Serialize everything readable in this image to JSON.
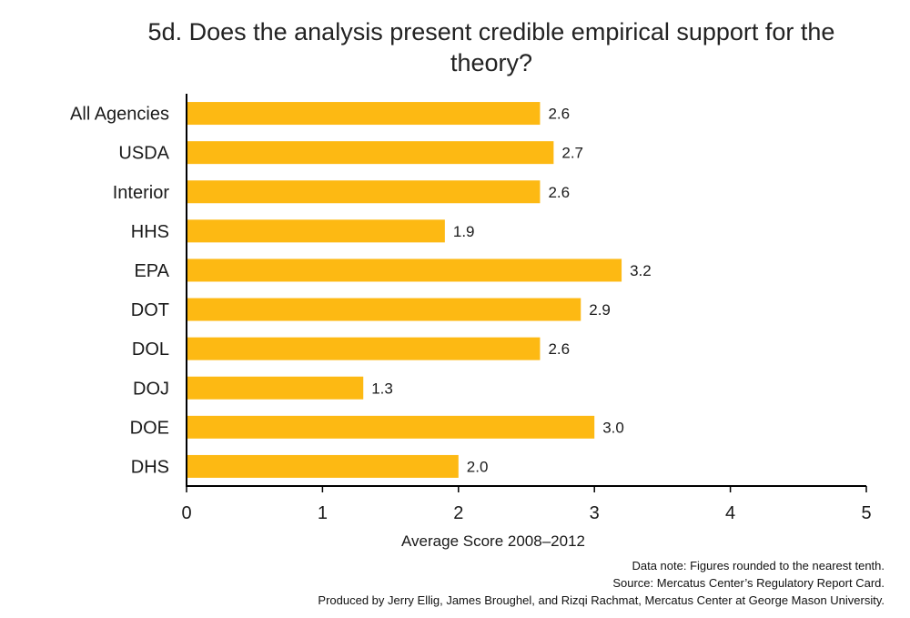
{
  "chart_data": {
    "type": "bar",
    "orientation": "horizontal",
    "title": "5d. Does the analysis present credible empirical support for the theory?",
    "xlabel": "Average Score 2008–2012",
    "ylabel": "",
    "categories": [
      "All Agencies",
      "USDA",
      "Interior",
      "HHS",
      "EPA",
      "DOT",
      "DOL",
      "DOJ",
      "DOE",
      "DHS"
    ],
    "values": [
      2.6,
      2.7,
      2.6,
      1.9,
      3.2,
      2.9,
      2.6,
      1.3,
      3.0,
      2.0
    ],
    "value_labels": [
      "2.6",
      "2.7",
      "2.6",
      "1.9",
      "3.2",
      "2.9",
      "2.6",
      "1.3",
      "3.0",
      "2.0"
    ],
    "xlim": [
      0,
      5
    ],
    "xticks": [
      "0",
      "1",
      "2",
      "3",
      "4",
      "5"
    ],
    "grid": false,
    "bar_color": "#FDB913"
  },
  "notes": {
    "data_note": "Data note: Figures rounded to the nearest tenth.",
    "source": "Source: Mercatus Center’s Regulatory Report Card.",
    "credit": "Produced by Jerry Ellig, James Broughel, and Rizqi Rachmat, Mercatus Center at George Mason University."
  }
}
